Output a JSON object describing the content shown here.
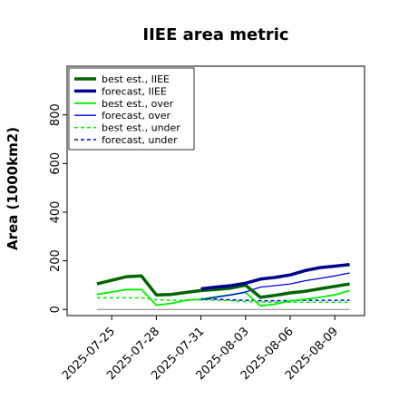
{
  "chart_data": {
    "type": "line",
    "title": "IIEE area metric",
    "xlabel": "",
    "ylabel": "Area (1000km2)",
    "ylim": [
      -25,
      1000
    ],
    "xlim": [
      "2025-07-22",
      "2025-08-11"
    ],
    "yticks": [
      0,
      200,
      400,
      600,
      800
    ],
    "xticks": [
      "2025-07-25",
      "2025-07-28",
      "2025-07-31",
      "2025-08-03",
      "2025-08-06",
      "2025-08-09"
    ],
    "highlighted_xtick": "2025-07-31",
    "highlight_color": "#228b22",
    "grid": false,
    "legend_position": "top-left",
    "baseline": {
      "value": 0,
      "color": "#808080"
    },
    "series": [
      {
        "name": "best est., IIEE",
        "color": "#006400",
        "style": "solid",
        "width": 3.5,
        "x": [
          "2025-07-24",
          "2025-07-25",
          "2025-07-26",
          "2025-07-27",
          "2025-07-28",
          "2025-07-29",
          "2025-07-30",
          "2025-07-31",
          "2025-08-01",
          "2025-08-02",
          "2025-08-03",
          "2025-08-04",
          "2025-08-05",
          "2025-08-06",
          "2025-08-07",
          "2025-08-08",
          "2025-08-09",
          "2025-08-10"
        ],
        "y": [
          105,
          120,
          135,
          138,
          60,
          62,
          70,
          78,
          82,
          88,
          100,
          50,
          58,
          68,
          75,
          85,
          95,
          105
        ]
      },
      {
        "name": "forecast, IIEE",
        "color": "#00008b",
        "style": "solid",
        "width": 3.5,
        "x": [
          "2025-07-31",
          "2025-08-01",
          "2025-08-02",
          "2025-08-03",
          "2025-08-04",
          "2025-08-05",
          "2025-08-06",
          "2025-08-07",
          "2025-08-08",
          "2025-08-09",
          "2025-08-10"
        ],
        "y": [
          85,
          92,
          98,
          108,
          125,
          132,
          142,
          160,
          172,
          178,
          185
        ]
      },
      {
        "name": "best est., over",
        "color": "#00ee00",
        "style": "solid",
        "width": 1.8,
        "x": [
          "2025-07-24",
          "2025-07-25",
          "2025-07-26",
          "2025-07-27",
          "2025-07-28",
          "2025-07-29",
          "2025-07-30",
          "2025-07-31",
          "2025-08-01",
          "2025-08-02",
          "2025-08-03",
          "2025-08-04",
          "2025-08-05",
          "2025-08-06",
          "2025-08-07",
          "2025-08-08",
          "2025-08-09",
          "2025-08-10"
        ],
        "y": [
          62,
          72,
          82,
          82,
          18,
          25,
          38,
          42,
          52,
          60,
          70,
          15,
          22,
          35,
          42,
          50,
          60,
          78
        ]
      },
      {
        "name": "forecast, over",
        "color": "#0000ee",
        "style": "solid",
        "width": 1.3,
        "x": [
          "2025-07-31",
          "2025-08-01",
          "2025-08-02",
          "2025-08-03",
          "2025-08-04",
          "2025-08-05",
          "2025-08-06",
          "2025-08-07",
          "2025-08-08",
          "2025-08-09",
          "2025-08-10"
        ],
        "y": [
          40,
          50,
          60,
          72,
          92,
          98,
          105,
          118,
          128,
          138,
          150
        ]
      },
      {
        "name": "best est., under",
        "color": "#00ee00",
        "style": "dashed",
        "width": 1.5,
        "x": [
          "2025-07-24",
          "2025-07-25",
          "2025-07-26",
          "2025-07-27",
          "2025-07-28",
          "2025-07-29",
          "2025-07-30",
          "2025-07-31",
          "2025-08-01",
          "2025-08-02",
          "2025-08-03",
          "2025-08-04",
          "2025-08-05",
          "2025-08-06",
          "2025-08-07",
          "2025-08-08",
          "2025-08-09",
          "2025-08-10"
        ],
        "y": [
          48,
          48,
          48,
          48,
          40,
          38,
          38,
          40,
          38,
          36,
          32,
          30,
          30,
          30,
          30,
          30,
          30,
          30
        ]
      },
      {
        "name": "forecast, under",
        "color": "#0000ee",
        "style": "dashed",
        "width": 1.5,
        "x": [
          "2025-07-31",
          "2025-08-01",
          "2025-08-02",
          "2025-08-03",
          "2025-08-04",
          "2025-08-05",
          "2025-08-06",
          "2025-08-07",
          "2025-08-08",
          "2025-08-09",
          "2025-08-10"
        ],
        "y": [
          45,
          42,
          40,
          38,
          36,
          36,
          36,
          38,
          38,
          38,
          38
        ]
      }
    ]
  }
}
